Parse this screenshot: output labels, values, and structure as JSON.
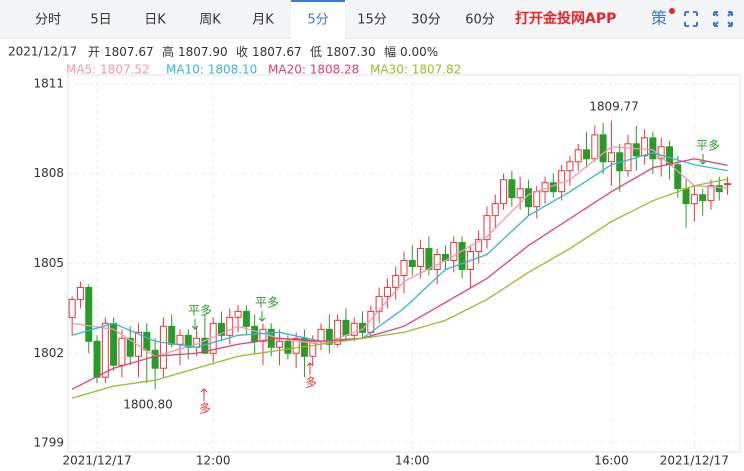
{
  "header": {
    "tabs": [
      "分时",
      "5日",
      "日K",
      "周K",
      "月K",
      "5分",
      "15分",
      "30分",
      "60分"
    ],
    "active_tab": 5,
    "app_link": "打开金投网APP",
    "icon_text": "策"
  },
  "info": {
    "date": "2021/12/17",
    "fields": [
      {
        "label": "开",
        "value": "1807.67"
      },
      {
        "label": "高",
        "value": "1807.90"
      },
      {
        "label": "收",
        "value": "1807.67"
      },
      {
        "label": "低",
        "value": "1807.30"
      },
      {
        "label": "幅",
        "value": "0.00%"
      }
    ]
  },
  "chart_data": {
    "type": "candlestick",
    "up_color": "#e0393e",
    "down_color": "#2a9a2a",
    "x": [
      0,
      1,
      2,
      3,
      4,
      5,
      6,
      7,
      8,
      9,
      10,
      11,
      12,
      13,
      14,
      15,
      16,
      17,
      18,
      19,
      20,
      21,
      22,
      23,
      24,
      25,
      26,
      27,
      28,
      29,
      30,
      31,
      32,
      33,
      34,
      35,
      36,
      37,
      38,
      39,
      40,
      41,
      42,
      43,
      44,
      45,
      46,
      47,
      48,
      49,
      50,
      51,
      52,
      53,
      54,
      55,
      56,
      57,
      58,
      59,
      60,
      61,
      62,
      63,
      64,
      65,
      66,
      67,
      68,
      69,
      70,
      71,
      72,
      73,
      74,
      75,
      76,
      77,
      78,
      79
    ],
    "open": [
      1803.2,
      1803.8,
      1804.2,
      1802.4,
      1801.2,
      1803.0,
      1801.6,
      1802.5,
      1801.9,
      1802.7,
      1802.1,
      1801.5,
      1802.9,
      1802.3,
      1802.6,
      1802.2,
      1802.5,
      1802.0,
      1803.0,
      1802.6,
      1803.2,
      1803.4,
      1802.9,
      1802.4,
      1802.8,
      1802.2,
      1802.4,
      1802.0,
      1802.5,
      1801.9,
      1802.4,
      1802.8,
      1802.3,
      1803.1,
      1802.6,
      1803.0,
      1802.7,
      1803.4,
      1803.9,
      1804.2,
      1804.6,
      1805.1,
      1804.9,
      1805.5,
      1804.8,
      1805.3,
      1805.1,
      1805.7,
      1804.8,
      1805.4,
      1805.8,
      1806.6,
      1807.0,
      1807.8,
      1807.2,
      1807.5,
      1806.9,
      1807.4,
      1807.7,
      1807.4,
      1808.1,
      1808.4,
      1808.8,
      1808.5,
      1809.3,
      1808.4,
      1808.7,
      1808.1,
      1809.0,
      1808.6,
      1809.2,
      1808.5,
      1808.9,
      1808.3,
      1807.5,
      1807.0,
      1807.3,
      1807.1,
      1807.6,
      1807.67
    ],
    "high": [
      1803.9,
      1804.4,
      1804.3,
      1802.6,
      1803.2,
      1803.2,
      1802.8,
      1802.9,
      1803.0,
      1803.0,
      1802.5,
      1803.2,
      1803.3,
      1802.8,
      1802.8,
      1802.9,
      1803.3,
      1803.2,
      1803.4,
      1803.5,
      1803.6,
      1803.6,
      1803.3,
      1803.0,
      1803.0,
      1802.8,
      1802.6,
      1802.7,
      1802.8,
      1802.6,
      1803.0,
      1803.3,
      1803.3,
      1803.5,
      1803.2,
      1803.4,
      1803.6,
      1804.2,
      1804.5,
      1804.9,
      1805.4,
      1805.6,
      1805.8,
      1805.9,
      1805.5,
      1805.6,
      1805.9,
      1805.9,
      1805.6,
      1806.1,
      1806.9,
      1807.3,
      1808.0,
      1808.1,
      1807.9,
      1807.8,
      1807.6,
      1807.9,
      1808.0,
      1808.3,
      1808.6,
      1809.0,
      1809.4,
      1809.6,
      1809.7,
      1809.77,
      1809.0,
      1809.3,
      1809.6,
      1809.5,
      1809.4,
      1809.2,
      1809.1,
      1808.6,
      1807.8,
      1807.6,
      1807.5,
      1807.8,
      1807.9,
      1807.9
    ],
    "low": [
      1802.6,
      1803.5,
      1802.0,
      1801.0,
      1801.0,
      1801.4,
      1801.2,
      1801.6,
      1801.2,
      1801.0,
      1800.8,
      1801.2,
      1802.2,
      1801.6,
      1801.8,
      1801.9,
      1802.0,
      1801.7,
      1802.4,
      1802.3,
      1802.7,
      1802.6,
      1802.0,
      1801.6,
      1801.9,
      1801.6,
      1801.8,
      1801.5,
      1801.2,
      1801.6,
      1802.1,
      1802.0,
      1802.2,
      1802.4,
      1802.4,
      1802.5,
      1802.5,
      1803.0,
      1803.5,
      1803.8,
      1804.0,
      1804.6,
      1804.5,
      1804.6,
      1804.3,
      1804.8,
      1804.7,
      1804.5,
      1804.2,
      1805.0,
      1805.5,
      1806.2,
      1806.8,
      1806.9,
      1806.8,
      1806.6,
      1806.5,
      1807.0,
      1807.2,
      1807.1,
      1807.6,
      1808.1,
      1808.2,
      1808.4,
      1808.0,
      1807.6,
      1807.4,
      1807.9,
      1808.1,
      1808.3,
      1808.0,
      1807.9,
      1807.8,
      1807.2,
      1806.2,
      1806.4,
      1806.6,
      1806.8,
      1807.1,
      1807.3
    ],
    "close": [
      1803.8,
      1804.2,
      1802.4,
      1801.2,
      1803.0,
      1801.6,
      1802.5,
      1801.9,
      1802.7,
      1802.1,
      1801.5,
      1802.9,
      1802.3,
      1802.6,
      1802.2,
      1802.5,
      1802.0,
      1803.0,
      1802.6,
      1803.2,
      1803.4,
      1802.9,
      1802.4,
      1802.8,
      1802.2,
      1802.4,
      1802.0,
      1802.5,
      1801.9,
      1802.4,
      1802.8,
      1802.3,
      1803.1,
      1802.6,
      1803.0,
      1802.7,
      1803.4,
      1803.9,
      1804.2,
      1804.6,
      1805.1,
      1804.9,
      1805.5,
      1804.8,
      1805.3,
      1805.1,
      1805.7,
      1804.8,
      1805.4,
      1805.8,
      1806.6,
      1807.0,
      1807.8,
      1807.2,
      1807.5,
      1806.9,
      1807.4,
      1807.7,
      1807.4,
      1808.1,
      1808.4,
      1808.8,
      1808.5,
      1809.3,
      1808.4,
      1808.7,
      1808.1,
      1809.0,
      1808.6,
      1809.2,
      1808.5,
      1808.9,
      1808.3,
      1807.5,
      1807.0,
      1807.3,
      1807.1,
      1807.6,
      1807.4,
      1807.67
    ],
    "lines": [
      {
        "name": "MA5: 1807.52",
        "color": "#f09ab0",
        "x": [
          0,
          5,
          10,
          15,
          20,
          25,
          30,
          35,
          40,
          45,
          50,
          55,
          60,
          65,
          70,
          75,
          79
        ],
        "values": [
          1803.0,
          1802.8,
          1801.9,
          1802.3,
          1802.9,
          1802.5,
          1802.3,
          1802.8,
          1804.4,
          1805.1,
          1805.9,
          1807.3,
          1807.8,
          1808.9,
          1808.8,
          1807.6,
          1807.52
        ]
      },
      {
        "name": "MA10: 1808.10",
        "color": "#38b6d8",
        "x": [
          0,
          5,
          10,
          15,
          20,
          25,
          30,
          35,
          40,
          45,
          50,
          55,
          60,
          65,
          70,
          75,
          79
        ],
        "values": [
          1802.6,
          1803.0,
          1802.4,
          1802.2,
          1802.6,
          1802.7,
          1802.4,
          1802.5,
          1803.5,
          1804.8,
          1805.3,
          1806.6,
          1807.4,
          1808.3,
          1808.7,
          1808.3,
          1808.1
        ]
      },
      {
        "name": "MA20: 1808.28",
        "color": "#e0407a",
        "x": [
          0,
          5,
          10,
          15,
          20,
          25,
          30,
          35,
          40,
          45,
          50,
          55,
          60,
          65,
          70,
          75,
          79
        ],
        "values": [
          1800.8,
          1801.5,
          1801.9,
          1802.0,
          1802.3,
          1802.5,
          1802.4,
          1802.5,
          1802.9,
          1803.7,
          1804.5,
          1805.6,
          1806.5,
          1807.4,
          1808.2,
          1808.5,
          1808.28
        ]
      },
      {
        "name": "MA30: 1807.82",
        "color": "#9cbb2b",
        "x": [
          0,
          5,
          10,
          15,
          20,
          25,
          30,
          35,
          40,
          45,
          50,
          55,
          60,
          65,
          70,
          75,
          79
        ],
        "values": [
          1800.5,
          1800.9,
          1801.1,
          1801.5,
          1801.9,
          1802.1,
          1802.3,
          1802.5,
          1802.7,
          1803.1,
          1803.8,
          1804.7,
          1805.5,
          1806.4,
          1807.1,
          1807.6,
          1807.82
        ]
      }
    ],
    "xlim": [
      -0.5,
      80.5
    ],
    "xticks": [
      {
        "value": 3,
        "label": "2021/12/17"
      },
      {
        "value": 17,
        "label": "12:00"
      },
      {
        "value": 41,
        "label": "14:00"
      },
      {
        "value": 65,
        "label": "16:00"
      },
      {
        "value": 75,
        "label": "2021/12/17"
      }
    ],
    "ylim": [
      1798.7,
      1811.3
    ],
    "yticks": [
      1799,
      1802,
      1805,
      1808,
      1811
    ],
    "grid": true,
    "annotations": [
      "1809.77",
      "1800.80",
      "平多",
      "平多",
      "平多",
      "多",
      "多"
    ]
  }
}
